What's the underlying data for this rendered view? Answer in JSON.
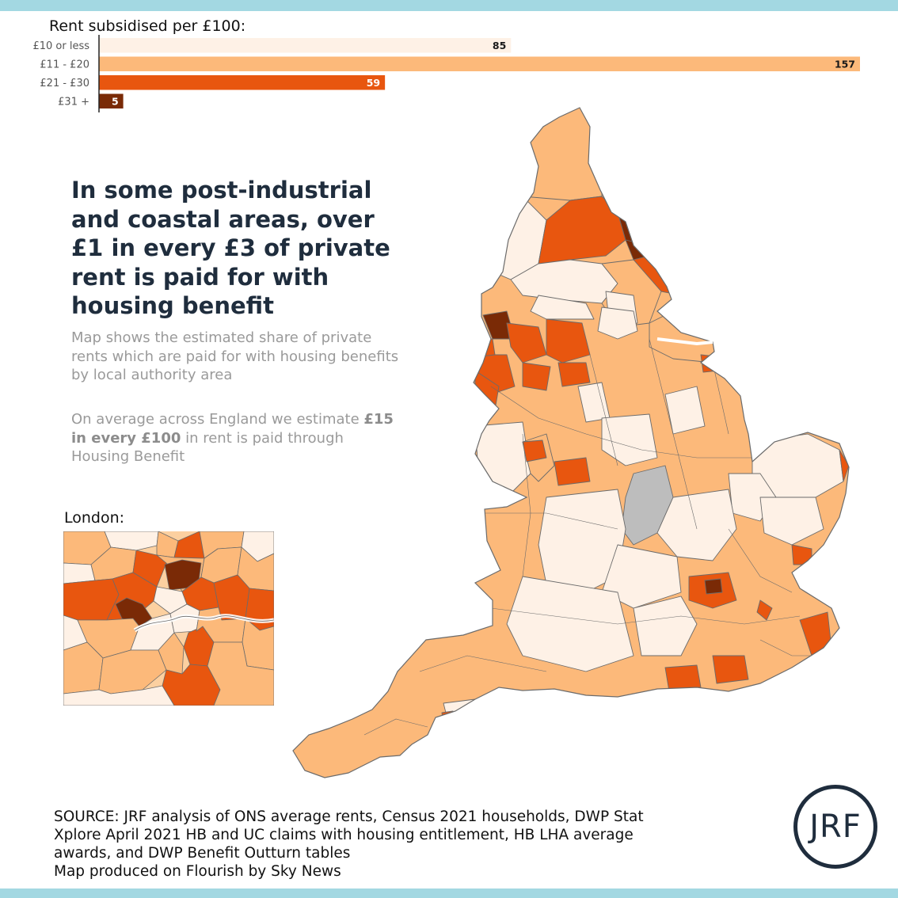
{
  "legend": {
    "title": "Rent subsidised per £100:"
  },
  "chart_data": {
    "type": "bar",
    "title": "Rent subsidised per £100:",
    "categories": [
      "£10 or less",
      "£11 - £20",
      "£21 - £30",
      "£31 +"
    ],
    "values": [
      85,
      157,
      59,
      5
    ],
    "colors": [
      "#fef1e6",
      "#fcb97a",
      "#e8560f",
      "#7a2a06"
    ],
    "value_label_colors": [
      "#1a1a1a",
      "#1a1a1a",
      "#ffffff",
      "#ffffff"
    ],
    "xlim": [
      0,
      157
    ]
  },
  "headline": "In some post-industrial and coastal areas, over £1 in every £3 of private rent is paid for with housing benefit",
  "description": {
    "line1": "Map shows the estimated share of private rents which are paid for with housing benefits by local authority area",
    "line2_prefix": "On average across England we estimate ",
    "line2_bold": "£15 in every £100",
    "line2_suffix": " in rent is paid through Housing Benefit"
  },
  "london": {
    "label": "London:"
  },
  "map_colors": {
    "lightest": "#fef1e6",
    "light": "#fcb97a",
    "dark": "#e8560f",
    "darkest": "#7a2a06",
    "no_data": "#bdbdbd",
    "border": "#6b6b6b"
  },
  "source": {
    "line1": "SOURCE: JRF analysis of ONS average rents, Census 2021 households, DWP Stat",
    "line2": "Xplore April 2021 HB and UC claims with housing entitlement, HB LHA average",
    "line3": "awards, and DWP Benefit Outturn tables",
    "line4": "Map produced on Flourish by Sky News"
  },
  "logo": {
    "text": "JRF"
  }
}
